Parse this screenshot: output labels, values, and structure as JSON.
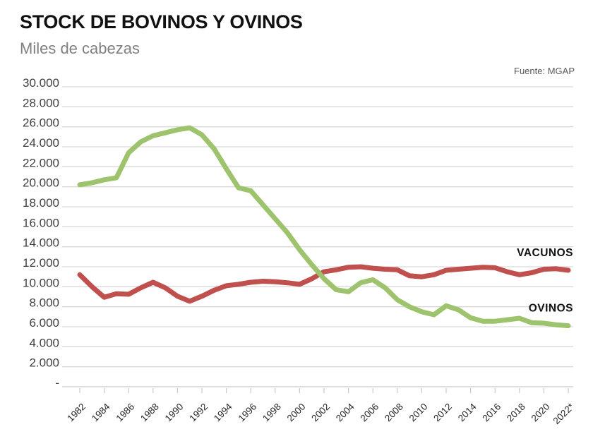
{
  "header": {
    "title": "STOCK DE BOVINOS Y OVINOS",
    "subtitle": "Miles de cabezas",
    "source": "Fuente: MGAP"
  },
  "chart_data": {
    "type": "line",
    "title": "STOCK DE BOVINOS Y OVINOS",
    "subtitle_unit": "Miles de cabezas",
    "source": "Fuente: MGAP",
    "grid": true,
    "legend_position": "right-end-labels",
    "ylim": [
      0,
      30000
    ],
    "yticks": {
      "values": [
        30000,
        28000,
        26000,
        24000,
        22000,
        20000,
        18000,
        16000,
        14000,
        12000,
        10000,
        8000,
        6000,
        4000,
        2000,
        0
      ],
      "labels": [
        "30.000",
        "28.000",
        "26.000",
        "24.000",
        "22.000",
        "20.000",
        "18.000",
        "16.000",
        "14.000",
        "12.000",
        "10.000",
        "8.000",
        "6.000",
        "4.000",
        "2.000",
        "-"
      ]
    },
    "x": [
      1982,
      1983,
      1984,
      1985,
      1986,
      1987,
      1988,
      1989,
      1990,
      1991,
      1992,
      1993,
      1994,
      1995,
      1996,
      1997,
      1998,
      1999,
      2000,
      2001,
      2002,
      2003,
      2004,
      2005,
      2006,
      2007,
      2008,
      2009,
      2010,
      2011,
      2012,
      2013,
      2014,
      2015,
      2016,
      2017,
      2018,
      2019,
      2020,
      2021,
      2022
    ],
    "xticks": {
      "values": [
        1982,
        1984,
        1986,
        1988,
        1990,
        1992,
        1994,
        1996,
        1998,
        2000,
        2002,
        2004,
        2006,
        2008,
        2010,
        2012,
        2014,
        2016,
        2018,
        2020,
        2022
      ],
      "labels": [
        "1982",
        "1984",
        "1986",
        "1988",
        "1990",
        "1992",
        "1994",
        "1996",
        "1998",
        "2000",
        "2002",
        "2004",
        "2006",
        "2008",
        "2010",
        "2012",
        "2014",
        "2016",
        "2018",
        "2020",
        "2022*"
      ]
    },
    "series": [
      {
        "name": "VACUNOS",
        "color": "#c0504d",
        "values": [
          11200,
          10000,
          8950,
          9300,
          9250,
          9900,
          10450,
          9900,
          9050,
          8550,
          9050,
          9650,
          10100,
          10250,
          10450,
          10550,
          10500,
          10400,
          10250,
          10800,
          11500,
          11700,
          11950,
          12000,
          11850,
          11750,
          11700,
          11100,
          11000,
          11200,
          11650,
          11750,
          11850,
          11950,
          11900,
          11500,
          11200,
          11400,
          11750,
          11800,
          11650
        ]
      },
      {
        "name": "OVINOS",
        "color": "#9dc36c",
        "values": [
          20200,
          20400,
          20700,
          20900,
          23400,
          24500,
          25100,
          25400,
          25700,
          25900,
          25200,
          23800,
          21800,
          19900,
          19600,
          18200,
          16800,
          15400,
          13700,
          12200,
          10800,
          9700,
          9500,
          10400,
          10700,
          9900,
          8700,
          8000,
          7500,
          7200,
          8100,
          7700,
          6900,
          6550,
          6550,
          6700,
          6850,
          6400,
          6350,
          6200,
          6100
        ]
      }
    ],
    "style": {
      "grid_color": "#d9d9d9",
      "axis_color": "#c9c9c9",
      "tick_label_color": "#404040",
      "line_width": 7
    }
  }
}
